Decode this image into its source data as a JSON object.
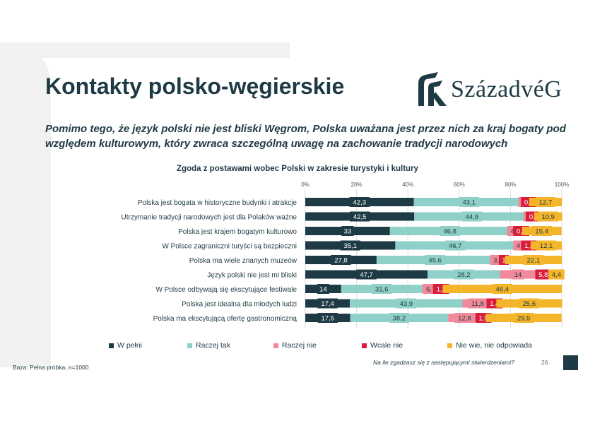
{
  "title": "Kontakty polsko-węgierskie",
  "subtitle": "Pomimo tego, że język polski nie jest bliski Węgrom, Polska uważana jest przez nich za kraj bogaty pod względem kulturowym, który zwraca szczególną uwagę na zachowanie tradycji narodowych",
  "logo": {
    "text": "SzázadvéG"
  },
  "footer": {
    "base": "Baza: Pełna próbka, n=1000",
    "question": "Na ile zgadzasz się z następującymi stwierdzeniami?",
    "page": "26"
  },
  "chart_data": {
    "type": "bar",
    "stacked": true,
    "orientation": "horizontal",
    "title": "Zgoda z postawami wobec Polski w zakresie turystyki i kultury",
    "xlim": [
      0,
      100
    ],
    "x_ticks": [
      "0%",
      "20%",
      "40%",
      "60%",
      "80%",
      "100%"
    ],
    "grid": true,
    "legend_position": "bottom",
    "categories": [
      "Polska jest bogata w historyczne budynki i atrakcje",
      "Utrzymanie tradycji narodowych jest dla Polaków ważne",
      "Polska jest krajem bogatym kulturowo",
      "W Polsce zagraniczni turyści są bezpieczni",
      "Polska ma wiele znanych muzeów",
      "Język polski nie jest mi bliski",
      "W Polsce odbywają się ekscytujące festiwale",
      "Polska jest idealna dla młodych ludzi",
      "Polska ma ekscytującą ofertę gastronomiczną"
    ],
    "series": [
      {
        "name": "W pełni",
        "color": "#1e3a44",
        "values": [
          42.3,
          42.5,
          33,
          35.1,
          27.8,
          47.7,
          14,
          17.4,
          17.5
        ],
        "labels": [
          "42,3",
          "42,5",
          "33",
          "35,1",
          "27,8",
          "47,7",
          "14",
          "17,4",
          "17,5"
        ]
      },
      {
        "name": "Raczej tak",
        "color": "#8fd0c8",
        "values": [
          43.1,
          44.9,
          46.8,
          46.7,
          45.6,
          28.2,
          31.6,
          43.9,
          38.2
        ],
        "labels": [
          "43,1",
          "44,9",
          "46,8",
          "46,7",
          "45,6",
          "28,2",
          "31,6",
          "43,9",
          "38,2"
        ]
      },
      {
        "name": "Raczej nie",
        "color": "#f0899a",
        "values": [
          1.7,
          1.6,
          4.1,
          4.8,
          3.5,
          14,
          6.7,
          11.8,
          12.8
        ],
        "labels": [
          "1,7",
          "1,6",
          "4,1",
          "4,8",
          "3,5",
          "14",
          "6,7",
          "11,8",
          "12,8"
        ]
      },
      {
        "name": "Wcale nie",
        "color": "#d91e3c",
        "values": [
          0.2,
          0.2,
          0.6,
          1.3,
          1,
          5.8,
          1.3,
          1.4,
          1.9
        ],
        "labels": [
          "0,2",
          "0,2",
          "0,6",
          "1,3",
          "1",
          "5,8",
          "1,3",
          "1,4",
          "1,9"
        ]
      },
      {
        "name": "Nie wie, nie odpowiada",
        "color": "#f5b52a",
        "values": [
          12.7,
          10.9,
          15.4,
          12.1,
          22.1,
          4.4,
          46.4,
          25.6,
          29.5
        ],
        "labels": [
          "12,7",
          "10,9",
          "15,4",
          "12,1",
          "22,1",
          "4,4",
          "46,4",
          "25,6",
          "29,5"
        ]
      }
    ]
  }
}
